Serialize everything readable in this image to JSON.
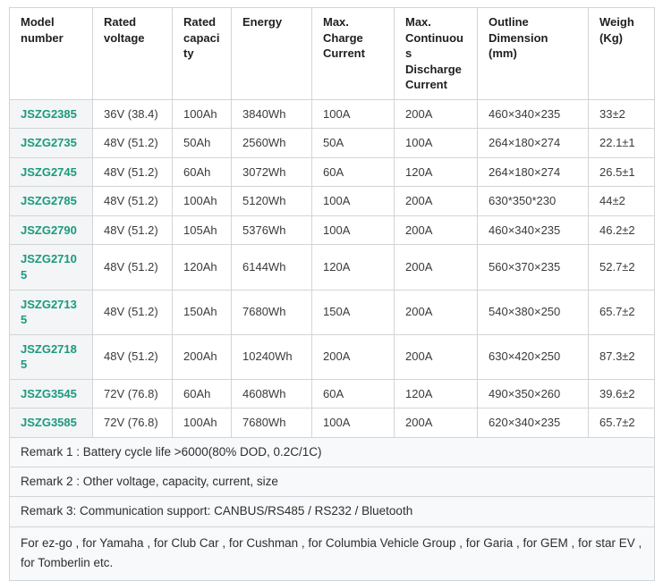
{
  "colors": {
    "model_link": "#1b9a7e",
    "border": "#d2d5d7",
    "first_column_bg": "#f3f5f6",
    "remark_bg": "#f8f9fa",
    "header_text": "#1f1f1f",
    "body_text": "#3a3a3a"
  },
  "table": {
    "columns": [
      {
        "label": "Model number"
      },
      {
        "label": "Rated voltage"
      },
      {
        "label": "Rated capacity"
      },
      {
        "label": "Energy"
      },
      {
        "label": "Max. Charge Current"
      },
      {
        "label": "Max. Continuous Discharge Current"
      },
      {
        "label": "Outline Dimension (mm)"
      },
      {
        "label": "Weigh (Kg)"
      }
    ],
    "rows": [
      [
        "JSZG2385",
        "36V (38.4)",
        "100Ah",
        "3840Wh",
        "100A",
        "200A",
        "460×340×235",
        "33±2"
      ],
      [
        "JSZG2735",
        "48V (51.2)",
        "50Ah",
        "2560Wh",
        "50A",
        "100A",
        "264×180×274",
        "22.1±1"
      ],
      [
        "JSZG2745",
        "48V (51.2)",
        "60Ah",
        "3072Wh",
        "60A",
        "120A",
        "264×180×274",
        "26.5±1"
      ],
      [
        "JSZG2785",
        "48V (51.2)",
        "100Ah",
        "5120Wh",
        "100A",
        "200A",
        "630*350*230",
        "44±2"
      ],
      [
        "JSZG2790",
        "48V (51.2)",
        "105Ah",
        "5376Wh",
        "100A",
        "200A",
        "460×340×235",
        "46.2±2"
      ],
      [
        "JSZG27105",
        "48V (51.2)",
        "120Ah",
        "6144Wh",
        "120A",
        "200A",
        "560×370×235",
        "52.7±2"
      ],
      [
        "JSZG27135",
        "48V (51.2)",
        "150Ah",
        "7680Wh",
        "150A",
        "200A",
        "540×380×250",
        "65.7±2"
      ],
      [
        "JSZG27185",
        "48V (51.2)",
        "200Ah",
        "10240Wh",
        "200A",
        "200A",
        "630×420×250",
        "87.3±2"
      ],
      [
        "JSZG3545",
        "72V (76.8)",
        "60Ah",
        "4608Wh",
        "60A",
        "120A",
        "490×350×260",
        "39.6±2"
      ],
      [
        "JSZG3585",
        "72V (76.8)",
        "100Ah",
        "7680Wh",
        "100A",
        "200A",
        "620×340×235",
        "65.7±2"
      ]
    ]
  },
  "remarks": [
    "Remark 1 : Battery cycle life >6000(80% DOD, 0.2C/1C)",
    "Remark 2 : Other voltage, capacity, current, size",
    "Remark 3: Communication support: CANBUS/RS485 / RS232 / Bluetooth"
  ],
  "compatibility": "For ez-go , for Yamaha , for Club Car , for Cushman , for Columbia Vehicle Group , for Garia , for GEM , for star EV , for Tomberlin etc."
}
